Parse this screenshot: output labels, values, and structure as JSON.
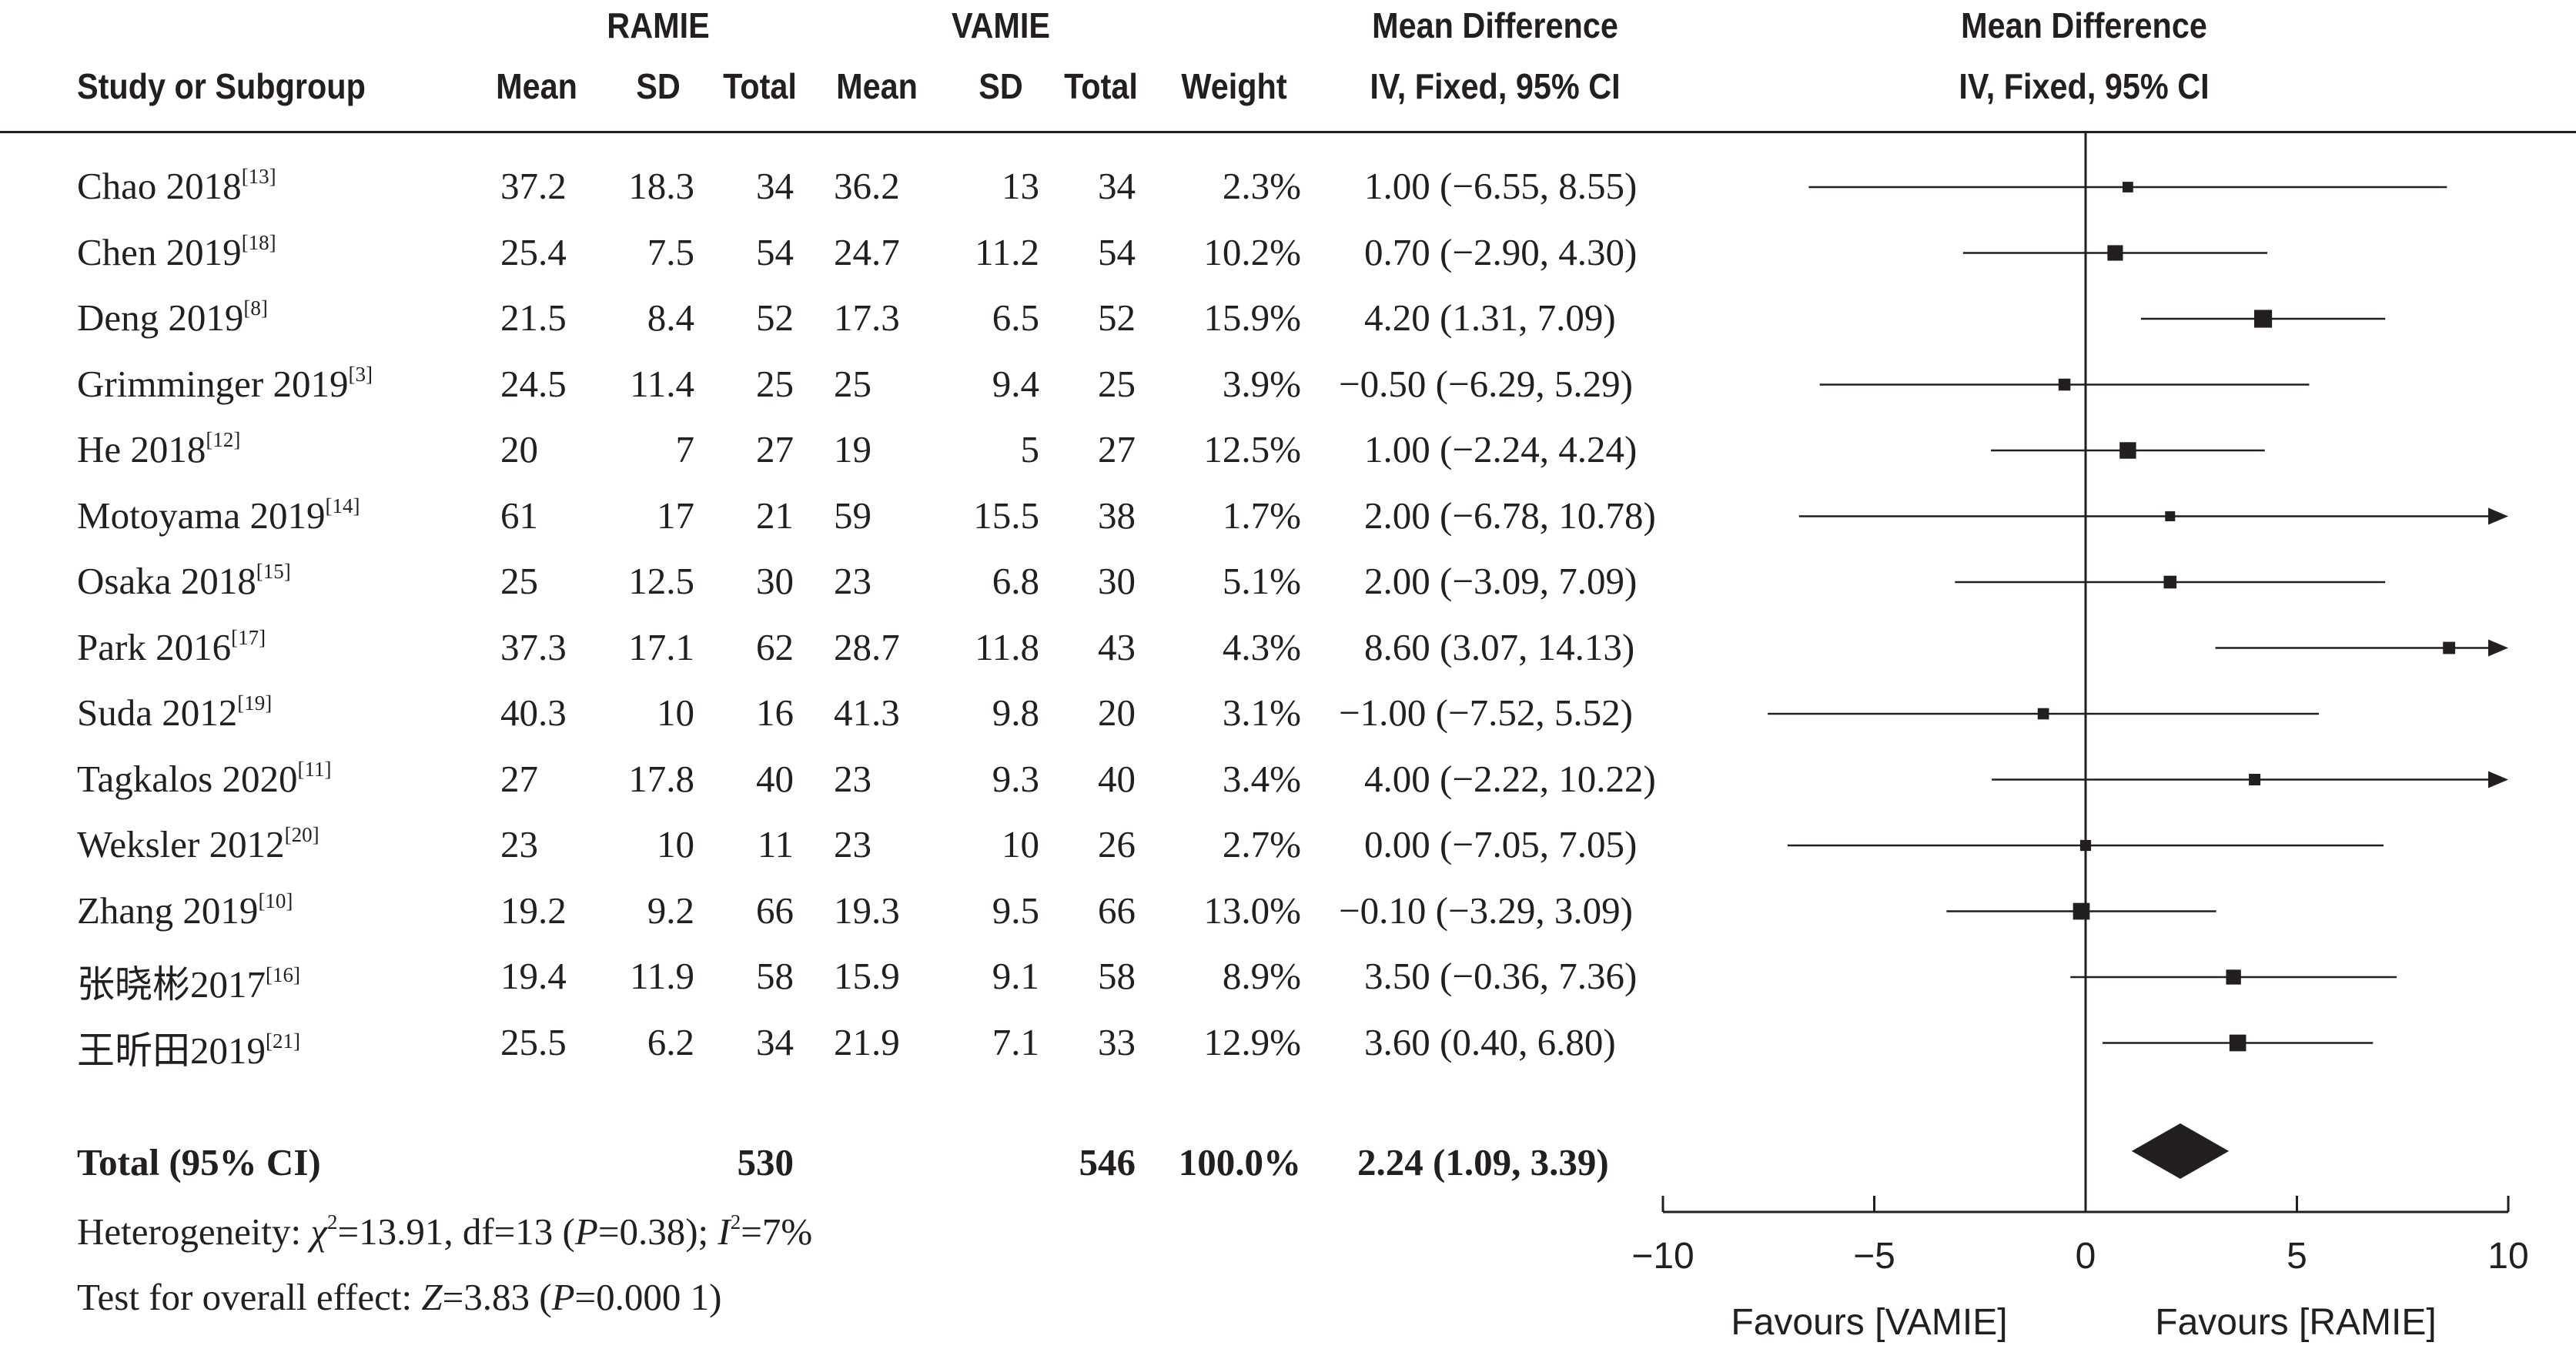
{
  "header": {
    "group1": "RAMIE",
    "group2": "VAMIE",
    "md_col_title": "Mean Difference",
    "md_col_method": "IV, Fixed, 95% CI",
    "plot_title": "Mean Difference",
    "plot_method": "IV, Fixed, 95% CI",
    "study": "Study or Subgroup",
    "mean": "Mean",
    "sd": "SD",
    "total": "Total",
    "weight": "Weight"
  },
  "studies": [
    {
      "name": "Chao 2018",
      "ref": "[13]",
      "m1": "37.2",
      "sd1": "18.3",
      "n1": "34",
      "m2": "36.2",
      "sd2": "13",
      "n2": "34",
      "weight": "2.3%",
      "ci_text": "1.00 (−6.55, 8.55)"
    },
    {
      "name": "Chen 2019",
      "ref": "[18]",
      "m1": "25.4",
      "sd1": "7.5",
      "n1": "54",
      "m2": "24.7",
      "sd2": "11.2",
      "n2": "54",
      "weight": "10.2%",
      "ci_text": "0.70 (−2.90, 4.30)"
    },
    {
      "name": "Deng 2019",
      "ref": "[8]",
      "m1": "21.5",
      "sd1": "8.4",
      "n1": "52",
      "m2": "17.3",
      "sd2": "6.5",
      "n2": "52",
      "weight": "15.9%",
      "ci_text": "4.20 (1.31, 7.09)"
    },
    {
      "name": "Grimminger 2019",
      "ref": "[3]",
      "m1": "24.5",
      "sd1": "11.4",
      "n1": "25",
      "m2": "25",
      "sd2": "9.4",
      "n2": "25",
      "weight": "3.9%",
      "ci_text": "−0.50 (−6.29, 5.29)"
    },
    {
      "name": "He 2018",
      "ref": "[12]",
      "m1": "20",
      "sd1": "7",
      "n1": "27",
      "m2": "19",
      "sd2": "5",
      "n2": "27",
      "weight": "12.5%",
      "ci_text": "1.00 (−2.24, 4.24)"
    },
    {
      "name": "Motoyama 2019",
      "ref": "[14]",
      "m1": "61",
      "sd1": "17",
      "n1": "21",
      "m2": "59",
      "sd2": "15.5",
      "n2": "38",
      "weight": "1.7%",
      "ci_text": "2.00 (−6.78, 10.78)"
    },
    {
      "name": "Osaka 2018",
      "ref": "[15]",
      "m1": "25",
      "sd1": "12.5",
      "n1": "30",
      "m2": "23",
      "sd2": "6.8",
      "n2": "30",
      "weight": "5.1%",
      "ci_text": "2.00 (−3.09, 7.09)"
    },
    {
      "name": "Park 2016",
      "ref": "[17]",
      "m1": "37.3",
      "sd1": "17.1",
      "n1": "62",
      "m2": "28.7",
      "sd2": "11.8",
      "n2": "43",
      "weight": "4.3%",
      "ci_text": "8.60 (3.07, 14.13)"
    },
    {
      "name": "Suda 2012",
      "ref": "[19]",
      "m1": "40.3",
      "sd1": "10",
      "n1": "16",
      "m2": "41.3",
      "sd2": "9.8",
      "n2": "20",
      "weight": "3.1%",
      "ci_text": "−1.00 (−7.52, 5.52)"
    },
    {
      "name": "Tagkalos 2020",
      "ref": "[11]",
      "m1": "27",
      "sd1": "17.8",
      "n1": "40",
      "m2": "23",
      "sd2": "9.3",
      "n2": "40",
      "weight": "3.4%",
      "ci_text": "4.00 (−2.22, 10.22)"
    },
    {
      "name": "Weksler 2012",
      "ref": "[20]",
      "m1": "23",
      "sd1": "10",
      "n1": "11",
      "m2": "23",
      "sd2": "10",
      "n2": "26",
      "weight": "2.7%",
      "ci_text": "0.00 (−7.05, 7.05)"
    },
    {
      "name": "Zhang 2019",
      "ref": "[10]",
      "m1": "19.2",
      "sd1": "9.2",
      "n1": "66",
      "m2": "19.3",
      "sd2": "9.5",
      "n2": "66",
      "weight": "13.0%",
      "ci_text": "−0.10 (−3.29, 3.09)"
    },
    {
      "name": "张晓彬2017",
      "ref": "[16]",
      "m1": "19.4",
      "sd1": "11.9",
      "n1": "58",
      "m2": "15.9",
      "sd2": "9.1",
      "n2": "58",
      "weight": "8.9%",
      "ci_text": "3.50 (−0.36, 7.36)"
    },
    {
      "name": "王昕田2019",
      "ref": "[21]",
      "m1": "25.5",
      "sd1": "6.2",
      "n1": "34",
      "m2": "21.9",
      "sd2": "7.1",
      "n2": "33",
      "weight": "12.9%",
      "ci_text": "3.60 (0.40, 6.80)"
    }
  ],
  "total": {
    "label": "Total (95% CI)",
    "n1": "530",
    "n2": "546",
    "weight": "100.0%",
    "ci_text": "2.24 (1.09, 3.39)"
  },
  "footer": {
    "het_prefix": "Heterogeneity: ",
    "het_chi": "χ",
    "het_sq": "2",
    "het_a": "=13.91, df=13 (",
    "het_p": "P",
    "het_b": "=0.38); ",
    "het_i": "I",
    "het_i2": "2",
    "het_c": "=7%",
    "test_prefix": "Test for overall effect: ",
    "test_z": "Z",
    "test_a": "=3.83 (",
    "test_p": "P",
    "test_b": "=0.000 1)"
  },
  "axis_labels": {
    "favours_left": "Favours [VAMIE]",
    "favours_right": "Favours [RAMIE]"
  },
  "chart_data": {
    "type": "forest",
    "xlim": [
      -10,
      10
    ],
    "ticks": [
      -10,
      -5,
      0,
      5,
      10
    ],
    "tick_labels": [
      "−10",
      "−5",
      "0",
      "5",
      "10"
    ],
    "studies": [
      {
        "name": "Chao 2018",
        "md": 1.0,
        "lo": -6.55,
        "hi": 8.55,
        "weight": 2.3
      },
      {
        "name": "Chen 2019",
        "md": 0.7,
        "lo": -2.9,
        "hi": 4.3,
        "weight": 10.2
      },
      {
        "name": "Deng 2019",
        "md": 4.2,
        "lo": 1.31,
        "hi": 7.09,
        "weight": 15.9
      },
      {
        "name": "Grimminger 2019",
        "md": -0.5,
        "lo": -6.29,
        "hi": 5.29,
        "weight": 3.9
      },
      {
        "name": "He 2018",
        "md": 1.0,
        "lo": -2.24,
        "hi": 4.24,
        "weight": 12.5
      },
      {
        "name": "Motoyama 2019",
        "md": 2.0,
        "lo": -6.78,
        "hi": 10.78,
        "weight": 1.7
      },
      {
        "name": "Osaka 2018",
        "md": 2.0,
        "lo": -3.09,
        "hi": 7.09,
        "weight": 5.1
      },
      {
        "name": "Park 2016",
        "md": 8.6,
        "lo": 3.07,
        "hi": 14.13,
        "weight": 4.3
      },
      {
        "name": "Suda 2012",
        "md": -1.0,
        "lo": -7.52,
        "hi": 5.52,
        "weight": 3.1
      },
      {
        "name": "Tagkalos 2020",
        "md": 4.0,
        "lo": -2.22,
        "hi": 10.22,
        "weight": 3.4
      },
      {
        "name": "Weksler 2012",
        "md": 0.0,
        "lo": -7.05,
        "hi": 7.05,
        "weight": 2.7
      },
      {
        "name": "Zhang 2019",
        "md": -0.1,
        "lo": -3.29,
        "hi": 3.09,
        "weight": 13.0
      },
      {
        "name": "张晓彬2017",
        "md": 3.5,
        "lo": -0.36,
        "hi": 7.36,
        "weight": 8.9
      },
      {
        "name": "王昕田2019",
        "md": 3.6,
        "lo": 0.4,
        "hi": 6.8,
        "weight": 12.9
      }
    ],
    "total": {
      "md": 2.24,
      "lo": 1.09,
      "hi": 3.39,
      "weight": 100.0
    }
  }
}
